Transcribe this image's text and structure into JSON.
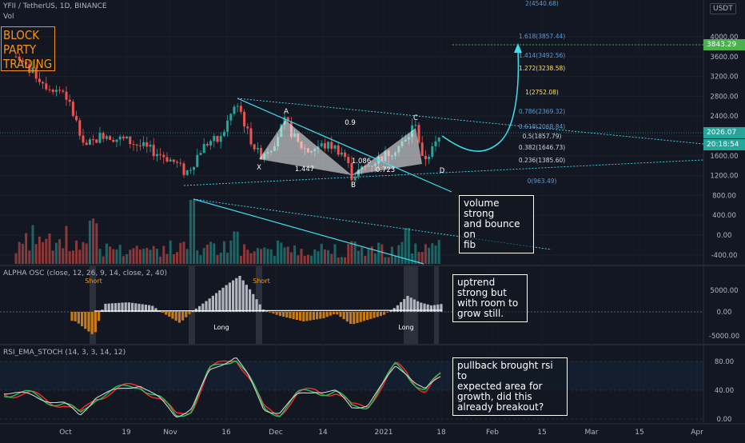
{
  "header": {
    "symbol": "YFII / TetherUS, 1D, BINANCE",
    "vol_label": "Vol",
    "currency_button": "USDT"
  },
  "logo_text": "BLOCK\nPARTY\nTRADING",
  "badges": {
    "target_price": "3843.29",
    "current_price": "2026.07",
    "countdown": "20:18:54"
  },
  "annotations": {
    "volume_note": "volume strong\nand bounce on\nfib",
    "osc_note": "uptrend\nstrong but\nwith room to\ngrow still.",
    "rsi_note": "pullback brought rsi to\nexpected area for\ngrowth, did this\nalready breakout?"
  },
  "panes": {
    "osc_title": "ALPHA OSC (close, 12, 26, 9, 14, close, 2, 40)",
    "rsi_title": "RSI_EMA_STOCH (14, 3, 3, 14, 12)"
  },
  "chart_data": [
    {
      "type": "candlestick",
      "pane": "price",
      "y_axis_ticks": [
        "4000.00",
        "3600.00",
        "3200.00",
        "2800.00",
        "2400.00",
        "2000.00",
        "1600.00",
        "1200.00",
        "800.00",
        "400.00",
        "0.00",
        "-400.00"
      ],
      "x_axis_ticks": [
        "Oct",
        "19",
        "Nov",
        "16",
        "Dec",
        "14",
        "2021",
        "18",
        "Feb",
        "15",
        "Mar",
        "15",
        "Apr"
      ],
      "harmonic_pattern": {
        "points": [
          "X",
          "A",
          "B",
          "C",
          "D"
        ],
        "ratios": [
          "1.447",
          "1.086",
          "0.723",
          "0.9"
        ]
      },
      "fibonacci_levels": [
        {
          "ratio": "2",
          "label": "2(4540.68)",
          "value": 4540.68
        },
        {
          "ratio": "1.618",
          "label": "1.618(3857.44)",
          "value": 3857.44
        },
        {
          "ratio": "1.414",
          "label": "1.414(3492.56)",
          "value": 3492.56
        },
        {
          "ratio": "1.272",
          "label": "1.272(3238.58)",
          "value": 3238.58
        },
        {
          "ratio": "1",
          "label": "1(2752.08)",
          "value": 2752.08
        },
        {
          "ratio": "0.786",
          "label": "0.786(2369.32)",
          "value": 2369.32
        },
        {
          "ratio": "0.618",
          "label": "0.618(2068.84)",
          "value": 2068.84
        },
        {
          "ratio": "0.5",
          "label": "0.5(1857.79)",
          "value": 1857.79
        },
        {
          "ratio": "0.382",
          "label": "0.382(1646.73)",
          "value": 1646.73
        },
        {
          "ratio": "0.236",
          "label": "0.236(1385.60)",
          "value": 1385.6
        },
        {
          "ratio": "0",
          "label": "0(963.49)",
          "value": 963.49
        }
      ]
    },
    {
      "type": "bar",
      "pane": "alpha_osc",
      "y_axis_ticks": [
        "5000.00",
        "0.00",
        "-5000.00"
      ],
      "signals": [
        "Short",
        "Short",
        "Long",
        "Long"
      ]
    },
    {
      "type": "line",
      "pane": "rsi_ema_stoch",
      "y_axis_ticks": [
        "80.00",
        "40.00",
        "0.00"
      ],
      "series_colors": [
        "#ff2b2b",
        "#26c45a",
        "#d1d4dc"
      ]
    }
  ]
}
